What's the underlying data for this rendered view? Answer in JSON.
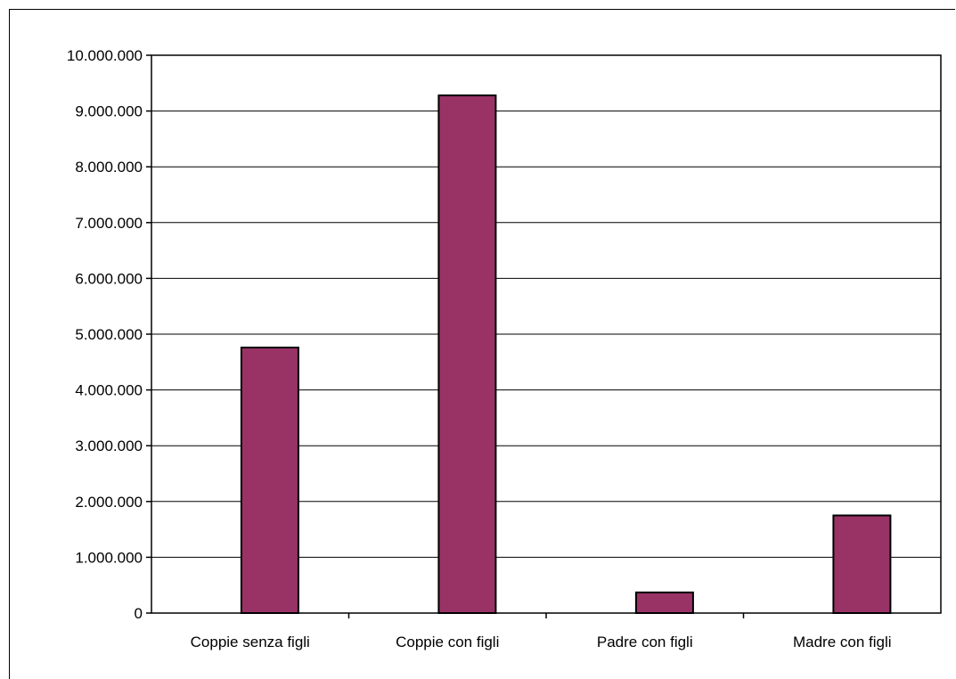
{
  "chart_data": {
    "type": "bar",
    "categories": [
      "Coppie senza figli",
      "Coppie con figli",
      "Padre con figli",
      "Madre con figli"
    ],
    "series": [
      {
        "values": [
          4760000,
          9280000,
          370000,
          1750000
        ]
      }
    ],
    "ylim": [
      0,
      10000000
    ],
    "yticks": [
      "0",
      "1.000.000",
      "2.000.000",
      "3.000.000",
      "4.000.000",
      "5.000.000",
      "6.000.000",
      "7.000.000",
      "8.000.000",
      "9.000.000",
      "10.000.000"
    ],
    "grid": true,
    "legend": "none",
    "colors": {
      "bar_fill": "#993366",
      "bar_stroke": "#000000",
      "grid": "#000000"
    }
  }
}
